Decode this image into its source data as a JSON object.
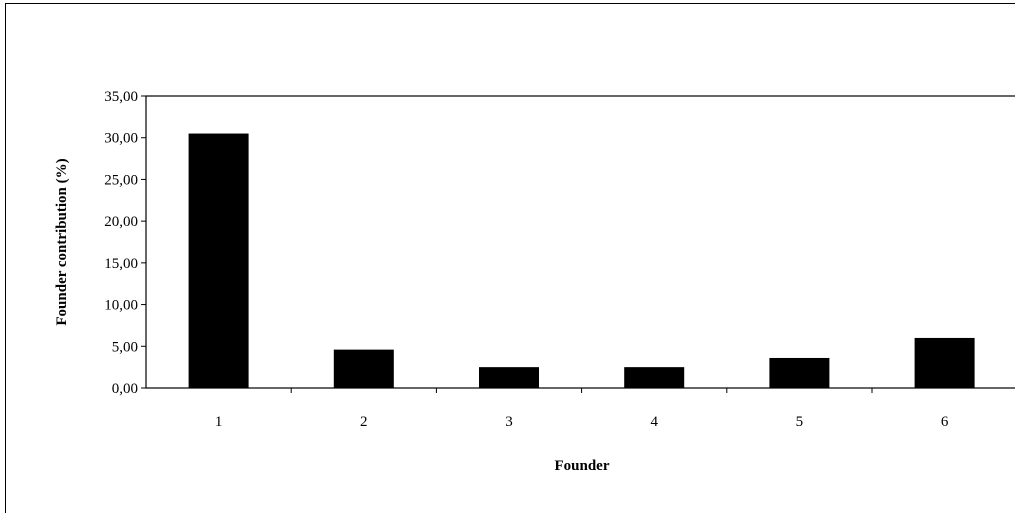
{
  "chart_data": {
    "type": "bar",
    "title": "",
    "xlabel": "Founder",
    "ylabel": "Founder contribution (%)",
    "categories": [
      "1",
      "2",
      "3",
      "4",
      "5",
      "6"
    ],
    "values": [
      30.5,
      4.6,
      2.5,
      2.5,
      3.6,
      6.0
    ],
    "ylim": [
      0,
      35
    ],
    "yticks": [
      "0,00",
      "5,00",
      "10,00",
      "15,00",
      "20,00",
      "25,00",
      "30,00",
      "35,00"
    ],
    "grid": false,
    "legend": "none",
    "bar_color": "#000000"
  }
}
